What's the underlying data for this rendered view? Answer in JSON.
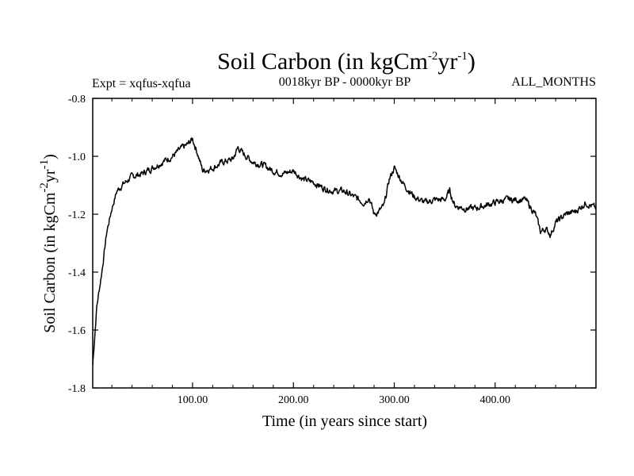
{
  "chart_data": {
    "type": "line",
    "title": "Soil Carbon (in kgCm-2yr-1)",
    "title_parts": {
      "base": "Soil Carbon (in kgCm",
      "exp1": "-2",
      "mid": "yr",
      "exp2": "-1",
      "end": ")"
    },
    "subtitle_left": "Expt = xqfus-xqfua",
    "subtitle_center": "0018kyr BP - 0000kyr BP",
    "subtitle_right": "ALL_MONTHS",
    "xlabel": "Time (in years since start)",
    "ylabel": "Soil Carbon (in kgCm-2yr-1)",
    "ylabel_parts": {
      "base": "Soil Carbon (in kgCm",
      "exp1": "-2",
      "mid": "yr",
      "exp2": "-1",
      "end": ")"
    },
    "xlim": [
      1,
      500
    ],
    "ylim": [
      -1.8,
      -0.8
    ],
    "x_ticks": [
      {
        "value": 100,
        "label": "100.00"
      },
      {
        "value": 200,
        "label": "200.00"
      },
      {
        "value": 300,
        "label": "300.00"
      },
      {
        "value": 400,
        "label": "400.00"
      }
    ],
    "y_ticks": [
      {
        "value": -1.8,
        "label": "-1.8"
      },
      {
        "value": -1.6,
        "label": "-1.6"
      },
      {
        "value": -1.4,
        "label": "-1.4"
      },
      {
        "value": -1.2,
        "label": "-1.2"
      },
      {
        "value": -1.0,
        "label": "-1.0"
      },
      {
        "value": -0.8,
        "label": "-0.8"
      }
    ],
    "series": [
      {
        "name": "xqfus-xqfua",
        "color": "#000000",
        "x": [
          1,
          5,
          10,
          15,
          20,
          25,
          30,
          40,
          50,
          60,
          70,
          80,
          90,
          95,
          100,
          105,
          110,
          120,
          130,
          140,
          145,
          150,
          160,
          170,
          180,
          190,
          200,
          210,
          220,
          230,
          240,
          250,
          260,
          270,
          275,
          280,
          285,
          290,
          295,
          300,
          305,
          310,
          320,
          330,
          340,
          350,
          355,
          360,
          370,
          380,
          390,
          400,
          410,
          420,
          430,
          440,
          445,
          450,
          455,
          460,
          470,
          480,
          490,
          495,
          500
        ],
        "values": [
          -1.72,
          -1.52,
          -1.4,
          -1.26,
          -1.18,
          -1.12,
          -1.1,
          -1.07,
          -1.06,
          -1.04,
          -1.02,
          -1.0,
          -0.97,
          -0.96,
          -0.94,
          -0.99,
          -1.05,
          -1.04,
          -1.02,
          -1.01,
          -0.97,
          -0.99,
          -1.02,
          -1.03,
          -1.05,
          -1.06,
          -1.05,
          -1.08,
          -1.09,
          -1.11,
          -1.12,
          -1.12,
          -1.14,
          -1.16,
          -1.14,
          -1.2,
          -1.19,
          -1.17,
          -1.08,
          -1.04,
          -1.07,
          -1.1,
          -1.14,
          -1.16,
          -1.15,
          -1.15,
          -1.12,
          -1.17,
          -1.18,
          -1.18,
          -1.17,
          -1.16,
          -1.15,
          -1.15,
          -1.15,
          -1.2,
          -1.26,
          -1.25,
          -1.27,
          -1.23,
          -1.2,
          -1.19,
          -1.16,
          -1.17,
          -1.18
        ]
      }
    ]
  }
}
